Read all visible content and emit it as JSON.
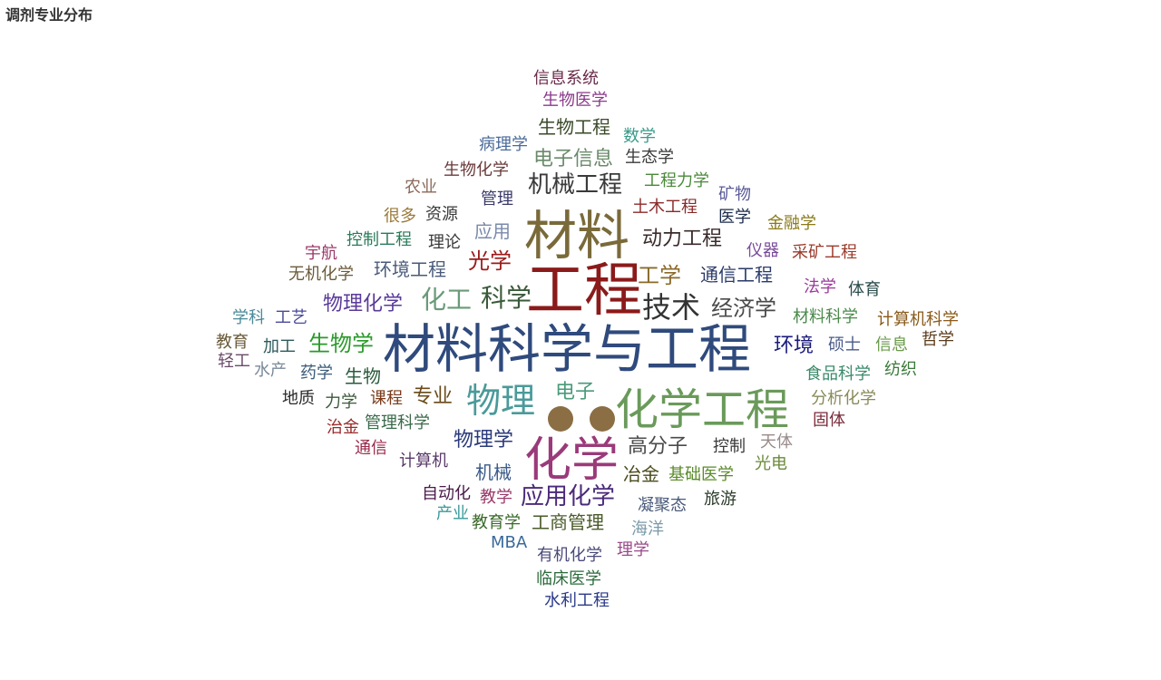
{
  "chart_data": {
    "type": "wordcloud",
    "title": "调剂专业分布",
    "words": [
      {
        "text": "材料科学与工程",
        "color": "#2f4a7c"
      },
      {
        "text": "工程",
        "color": "#8b1a1a"
      },
      {
        "text": "材料",
        "color": "#7a6a3a"
      },
      {
        "text": "化学工程",
        "color": "#6a9a5a"
      },
      {
        "text": "化学",
        "color": "#9a3a7a"
      },
      {
        "text": "物理",
        "color": "#4a9a9a"
      },
      {
        "text": "技术",
        "color": "#333333"
      },
      {
        "text": "化工",
        "color": "#6a9a7a"
      },
      {
        "text": "科学",
        "color": "#3a5a3a"
      },
      {
        "text": "机械工程",
        "color": "#3a3a3a"
      },
      {
        "text": "应用化学",
        "color": "#4a2a7a"
      },
      {
        "text": "经济学",
        "color": "#4a4a4a"
      },
      {
        "text": "光学",
        "color": "#9a1a1a"
      },
      {
        "text": "工学",
        "color": "#8a6a2a"
      },
      {
        "text": "生物学",
        "color": "#2a9a2a"
      },
      {
        "text": "动力工程",
        "color": "#3a2a2a"
      },
      {
        "text": "环境",
        "color": "#1a1a7a"
      },
      {
        "text": "物理化学",
        "color": "#5a3a9a"
      },
      {
        "text": "通信工程",
        "color": "#2a3a6a"
      },
      {
        "text": "物理学",
        "color": "#2a3a7a"
      },
      {
        "text": "高分子",
        "color": "#4a4a4a"
      },
      {
        "text": "电子信息",
        "color": "#6a8a6a"
      },
      {
        "text": "环境工程",
        "color": "#4a5a7a"
      },
      {
        "text": "工商管理",
        "color": "#4a5a2a"
      },
      {
        "text": "专业",
        "color": "#6a4a1a"
      },
      {
        "text": "电子",
        "color": "#4a9a7a"
      },
      {
        "text": "应用",
        "color": "#7a8aaa"
      },
      {
        "text": "生物",
        "color": "#2a5a3a"
      },
      {
        "text": "机械",
        "color": "#3a5a8a"
      },
      {
        "text": "冶金",
        "color": "#4a4a1a"
      },
      {
        "text": "生物工程",
        "color": "#3a4a2a"
      },
      {
        "text": "加工",
        "color": "#2a5a5a"
      },
      {
        "text": "土木工程",
        "color": "#8a2a2a"
      },
      {
        "text": "信息系统",
        "color": "#6a2a4a"
      },
      {
        "text": "生物医学",
        "color": "#8a3a8a"
      },
      {
        "text": "数学",
        "color": "#3a9a8a"
      },
      {
        "text": "病理学",
        "color": "#4a6a9a"
      },
      {
        "text": "生态学",
        "color": "#3a3a3a"
      },
      {
        "text": "生物化学",
        "color": "#6a3a3a"
      },
      {
        "text": "工程力学",
        "color": "#4a8a3a"
      },
      {
        "text": "农业",
        "color": "#8a6a5a"
      },
      {
        "text": "管理",
        "color": "#3a3a6a"
      },
      {
        "text": "矿物",
        "color": "#5a5a9a"
      },
      {
        "text": "很多",
        "color": "#9a7a3a"
      },
      {
        "text": "资源",
        "color": "#3a3a3a"
      },
      {
        "text": "医学",
        "color": "#1a2a4a"
      },
      {
        "text": "金融学",
        "color": "#8a7a1a"
      },
      {
        "text": "控制工程",
        "color": "#2a7a5a"
      },
      {
        "text": "理论",
        "color": "#3a3a3a"
      },
      {
        "text": "宇航",
        "color": "#9a3a6a"
      },
      {
        "text": "仪器",
        "color": "#7a4a9a"
      },
      {
        "text": "采矿工程",
        "color": "#9a3a2a"
      },
      {
        "text": "无机化学",
        "color": "#6a5a3a"
      },
      {
        "text": "法学",
        "color": "#9a3a9a"
      },
      {
        "text": "体育",
        "color": "#2a4a4a"
      },
      {
        "text": "学科",
        "color": "#4a8a9a"
      },
      {
        "text": "工艺",
        "color": "#4a4a9a"
      },
      {
        "text": "材料科学",
        "color": "#4a8a4a"
      },
      {
        "text": "计算机科学",
        "color": "#8a5a1a"
      },
      {
        "text": "教育",
        "color": "#6a5a3a"
      },
      {
        "text": "硕士",
        "color": "#4a5a8a"
      },
      {
        "text": "信息",
        "color": "#6a9a4a"
      },
      {
        "text": "哲学",
        "color": "#5a3a1a"
      },
      {
        "text": "轻工",
        "color": "#6a4a6a"
      },
      {
        "text": "水产",
        "color": "#7a8a9a"
      },
      {
        "text": "药学",
        "color": "#3a5a7a"
      },
      {
        "text": "食品科学",
        "color": "#3a8a6a"
      },
      {
        "text": "纺织",
        "color": "#3a7a3a"
      },
      {
        "text": "地质",
        "color": "#2a2a2a"
      },
      {
        "text": "力学",
        "color": "#3a5a3a"
      },
      {
        "text": "课程",
        "color": "#7a3a1a"
      },
      {
        "text": "分析化学",
        "color": "#8a8a5a"
      },
      {
        "text": "固体",
        "color": "#7a2a3a"
      },
      {
        "text": "管理科学",
        "color": "#3a6a4a"
      },
      {
        "text": "治金",
        "color": "#9a2a2a"
      },
      {
        "text": "通信",
        "color": "#9a2a4a"
      },
      {
        "text": "计算机",
        "color": "#5a3a6a"
      },
      {
        "text": "控制",
        "color": "#3a3a3a"
      },
      {
        "text": "天体",
        "color": "#9a8a8a"
      },
      {
        "text": "光电",
        "color": "#6a8a3a"
      },
      {
        "text": "基础医学",
        "color": "#5a8a2a"
      },
      {
        "text": "自动化",
        "color": "#4a1a4a"
      },
      {
        "text": "教学",
        "color": "#9a3a6a"
      },
      {
        "text": "凝聚态",
        "color": "#4a5a7a"
      },
      {
        "text": "旅游",
        "color": "#2a3a2a"
      },
      {
        "text": "产业",
        "color": "#3a9a9a"
      },
      {
        "text": "教育学",
        "color": "#3a6a2a"
      },
      {
        "text": "海洋",
        "color": "#7a9aaa"
      },
      {
        "text": "MBA",
        "color": "#3a6a9a"
      },
      {
        "text": "有机化学",
        "color": "#4a4a7a"
      },
      {
        "text": "理学",
        "color": "#9a4a8a"
      },
      {
        "text": "临床医学",
        "color": "#2a6a3a"
      },
      {
        "text": "水利工程",
        "color": "#2a3a8a"
      }
    ]
  },
  "decor": {
    "dot_color": "#8b6e44"
  }
}
